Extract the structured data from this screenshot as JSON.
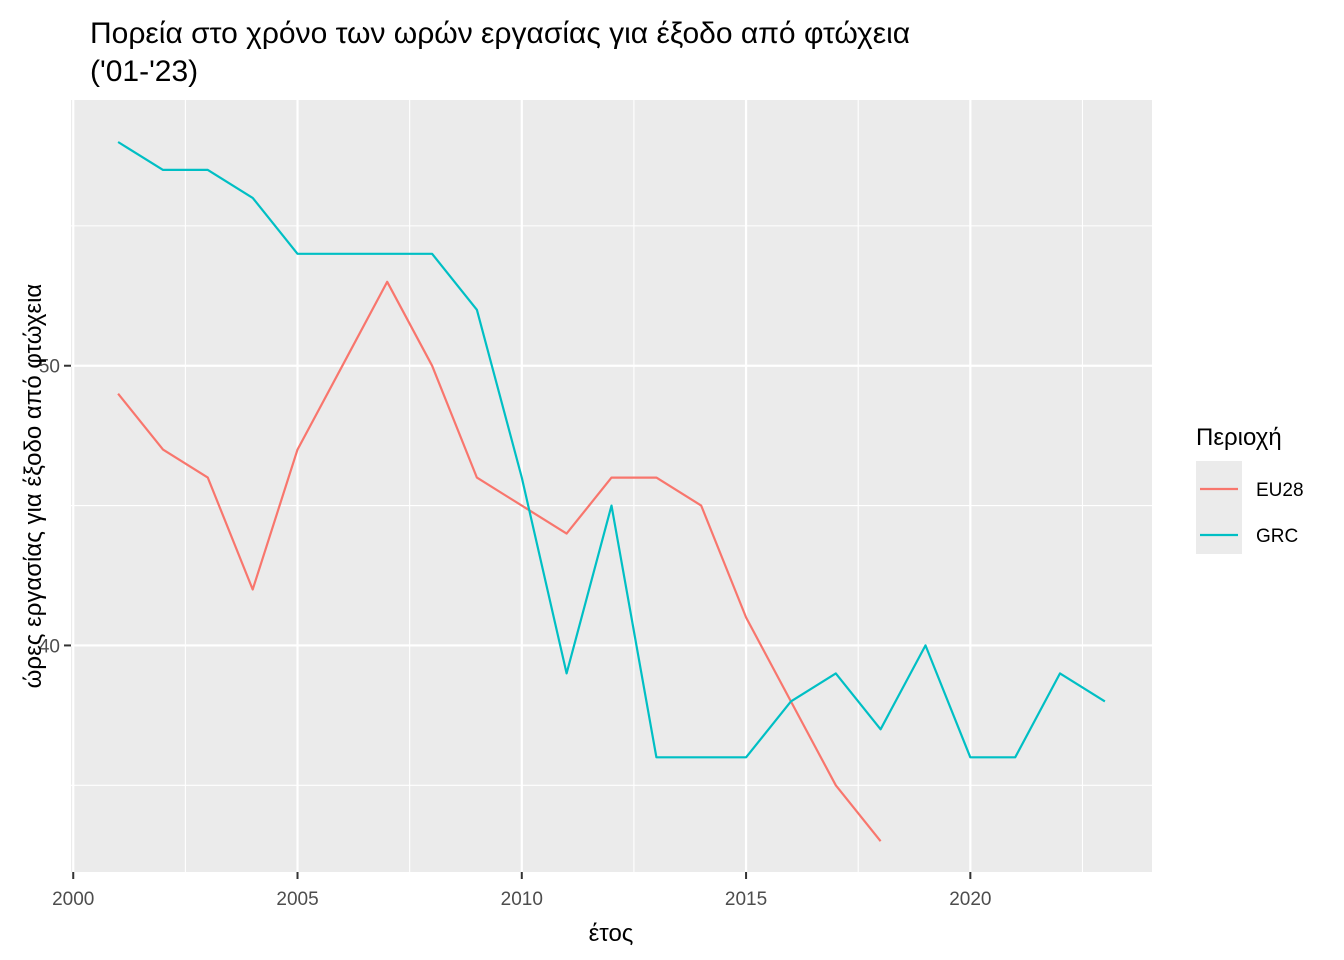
{
  "chart_data": {
    "type": "line",
    "title": "Πορεία στο χρόνο των ωρών εργασίας για έξοδο από φτώχεια ('01-'23)",
    "title_lines": [
      "Πορεία στο χρόνο των ωρών εργασίας για έξοδο από φτώχεια",
      "('01-'23)"
    ],
    "xlabel": "έτος",
    "ylabel": "ώρες εργασίας για έξοδο από φτώχεια",
    "xlim": [
      1999.95,
      2024.05
    ],
    "ylim": [
      31.9,
      59.5
    ],
    "x_ticks": [
      2000,
      2005,
      2010,
      2015,
      2020
    ],
    "y_ticks": [
      40,
      50
    ],
    "legend_title": "Περιοχή",
    "legend_position": "right",
    "grid": true,
    "background": "#EBEBEB",
    "series": [
      {
        "name": "EU28",
        "color": "#F8766D",
        "x": [
          2001,
          2002,
          2003,
          2004,
          2005,
          2006,
          2007,
          2008,
          2009,
          2010,
          2011,
          2012,
          2013,
          2014,
          2015,
          2016,
          2017,
          2018
        ],
        "y": [
          49,
          47,
          46,
          42,
          47,
          50,
          53,
          50,
          46,
          45,
          44,
          46,
          46,
          45,
          41,
          38,
          35,
          33
        ]
      },
      {
        "name": "GRC",
        "color": "#00BFC4",
        "x": [
          2001,
          2002,
          2003,
          2004,
          2005,
          2006,
          2007,
          2008,
          2009,
          2010,
          2011,
          2012,
          2013,
          2014,
          2015,
          2016,
          2017,
          2018,
          2019,
          2020,
          2021,
          2022,
          2023
        ],
        "y": [
          58,
          57,
          57,
          56,
          54,
          54,
          54,
          54,
          52,
          46,
          39,
          45,
          36,
          36,
          36,
          38,
          39,
          37,
          40,
          36,
          36,
          39,
          38
        ]
      }
    ]
  }
}
